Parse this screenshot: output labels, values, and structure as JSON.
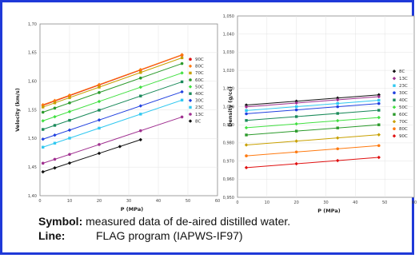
{
  "chart_data": [
    {
      "type": "scatter",
      "xlabel": "P (MPa)",
      "ylabel": "Velocity (km/s)",
      "xlim": [
        0,
        60
      ],
      "ylim": [
        1.4,
        1.7
      ],
      "x_ticks": [
        "0",
        "10",
        "20",
        "30",
        "40",
        "50",
        "60"
      ],
      "y_ticks": [
        "1,40",
        "1,45",
        "1,50",
        "1,55",
        "1,60",
        "1,65",
        "1,70"
      ],
      "legend_placement": "right",
      "series": [
        {
          "name": "90C",
          "color": "#e01010",
          "y0": 1.556,
          "slope": 0.00187,
          "x": [
            1,
            5,
            10,
            20,
            34,
            48
          ]
        },
        {
          "name": "80C",
          "color": "#ff7a10",
          "y0": 1.557,
          "slope": 0.00186,
          "x": [
            1,
            5,
            10,
            20,
            34,
            48
          ]
        },
        {
          "name": "70C",
          "color": "#c8a000",
          "y0": 1.553,
          "slope": 0.00183,
          "x": [
            1,
            5,
            10,
            20,
            34,
            48
          ]
        },
        {
          "name": "60C",
          "color": "#2a9a2a",
          "y0": 1.544,
          "slope": 0.00181,
          "x": [
            1,
            5,
            10,
            20,
            34,
            48
          ]
        },
        {
          "name": "50C",
          "color": "#40e040",
          "y0": 1.529,
          "slope": 0.00178,
          "x": [
            1,
            5,
            10,
            20,
            34,
            48
          ]
        },
        {
          "name": "40C",
          "color": "#1a8a5a",
          "y0": 1.514,
          "slope": 0.00177,
          "x": [
            1,
            5,
            10,
            20,
            34,
            48
          ]
        },
        {
          "name": "30C",
          "color": "#2040e0",
          "y0": 1.497,
          "slope": 0.00176,
          "x": [
            1,
            5,
            10,
            20,
            34,
            48
          ]
        },
        {
          "name": "23C",
          "color": "#30c8f0",
          "y0": 1.483,
          "slope": 0.00175,
          "x": [
            1,
            5,
            10,
            20,
            34,
            48
          ]
        },
        {
          "name": "13C",
          "color": "#a03090",
          "y0": 1.455,
          "slope": 0.00172,
          "x": [
            1,
            5,
            10,
            20,
            34,
            48
          ]
        },
        {
          "name": "8C",
          "color": "#111111",
          "y0": 1.44,
          "slope": 0.0017,
          "x": [
            1,
            5,
            10,
            20,
            27,
            34
          ]
        }
      ]
    },
    {
      "type": "scatter",
      "xlabel": "P (MPa)",
      "ylabel": "Density (g/cc)",
      "xlim": [
        0,
        60
      ],
      "ylim": [
        0.95,
        1.05
      ],
      "x_ticks": [
        "0",
        "10",
        "20",
        "30",
        "40",
        "50",
        "60"
      ],
      "y_ticks": [
        "0,950",
        "0,960",
        "0,970",
        "0,980",
        "0,990",
        "1,000",
        "1,010",
        "1,020",
        "1,030",
        "1,040",
        "1,050"
      ],
      "legend_placement": "right",
      "series": [
        {
          "name": "8C",
          "color": "#111111",
          "y0": 1.0005,
          "slope": 0.000125,
          "x": [
            3,
            20,
            34,
            48
          ]
        },
        {
          "name": "13C",
          "color": "#a03090",
          "y0": 0.9995,
          "slope": 0.000125,
          "x": [
            3,
            20,
            34,
            48
          ]
        },
        {
          "name": "23C",
          "color": "#30c8f0",
          "y0": 0.9975,
          "slope": 0.000125,
          "x": [
            3,
            20,
            34,
            48
          ]
        },
        {
          "name": "30C",
          "color": "#2040e0",
          "y0": 0.9957,
          "slope": 0.000125,
          "x": [
            3,
            20,
            34,
            48
          ]
        },
        {
          "name": "40C",
          "color": "#1a8a5a",
          "y0": 0.992,
          "slope": 0.000125,
          "x": [
            3,
            20,
            34,
            48
          ]
        },
        {
          "name": "50C",
          "color": "#40e040",
          "y0": 0.988,
          "slope": 0.000125,
          "x": [
            3,
            20,
            34,
            48
          ]
        },
        {
          "name": "60C",
          "color": "#2a9a2a",
          "y0": 0.984,
          "slope": 0.000125,
          "x": [
            3,
            20,
            34,
            48
          ]
        },
        {
          "name": "70C",
          "color": "#c8a000",
          "y0": 0.9785,
          "slope": 0.000125,
          "x": [
            3,
            20,
            34,
            48
          ]
        },
        {
          "name": "80C",
          "color": "#ff7a10",
          "y0": 0.9725,
          "slope": 0.000125,
          "x": [
            3,
            20,
            34,
            48
          ]
        },
        {
          "name": "90C",
          "color": "#e01010",
          "y0": 0.966,
          "slope": 0.000125,
          "x": [
            3,
            20,
            34,
            48
          ]
        }
      ]
    }
  ],
  "caption": {
    "symbol_label": "Symbol:",
    "symbol_text": "measured data of de-aired distilled water.",
    "line_label": "Line:",
    "line_text": "FLAG program (IAPWS-IF97)"
  },
  "colors": {
    "frame": "#1f39d8"
  }
}
